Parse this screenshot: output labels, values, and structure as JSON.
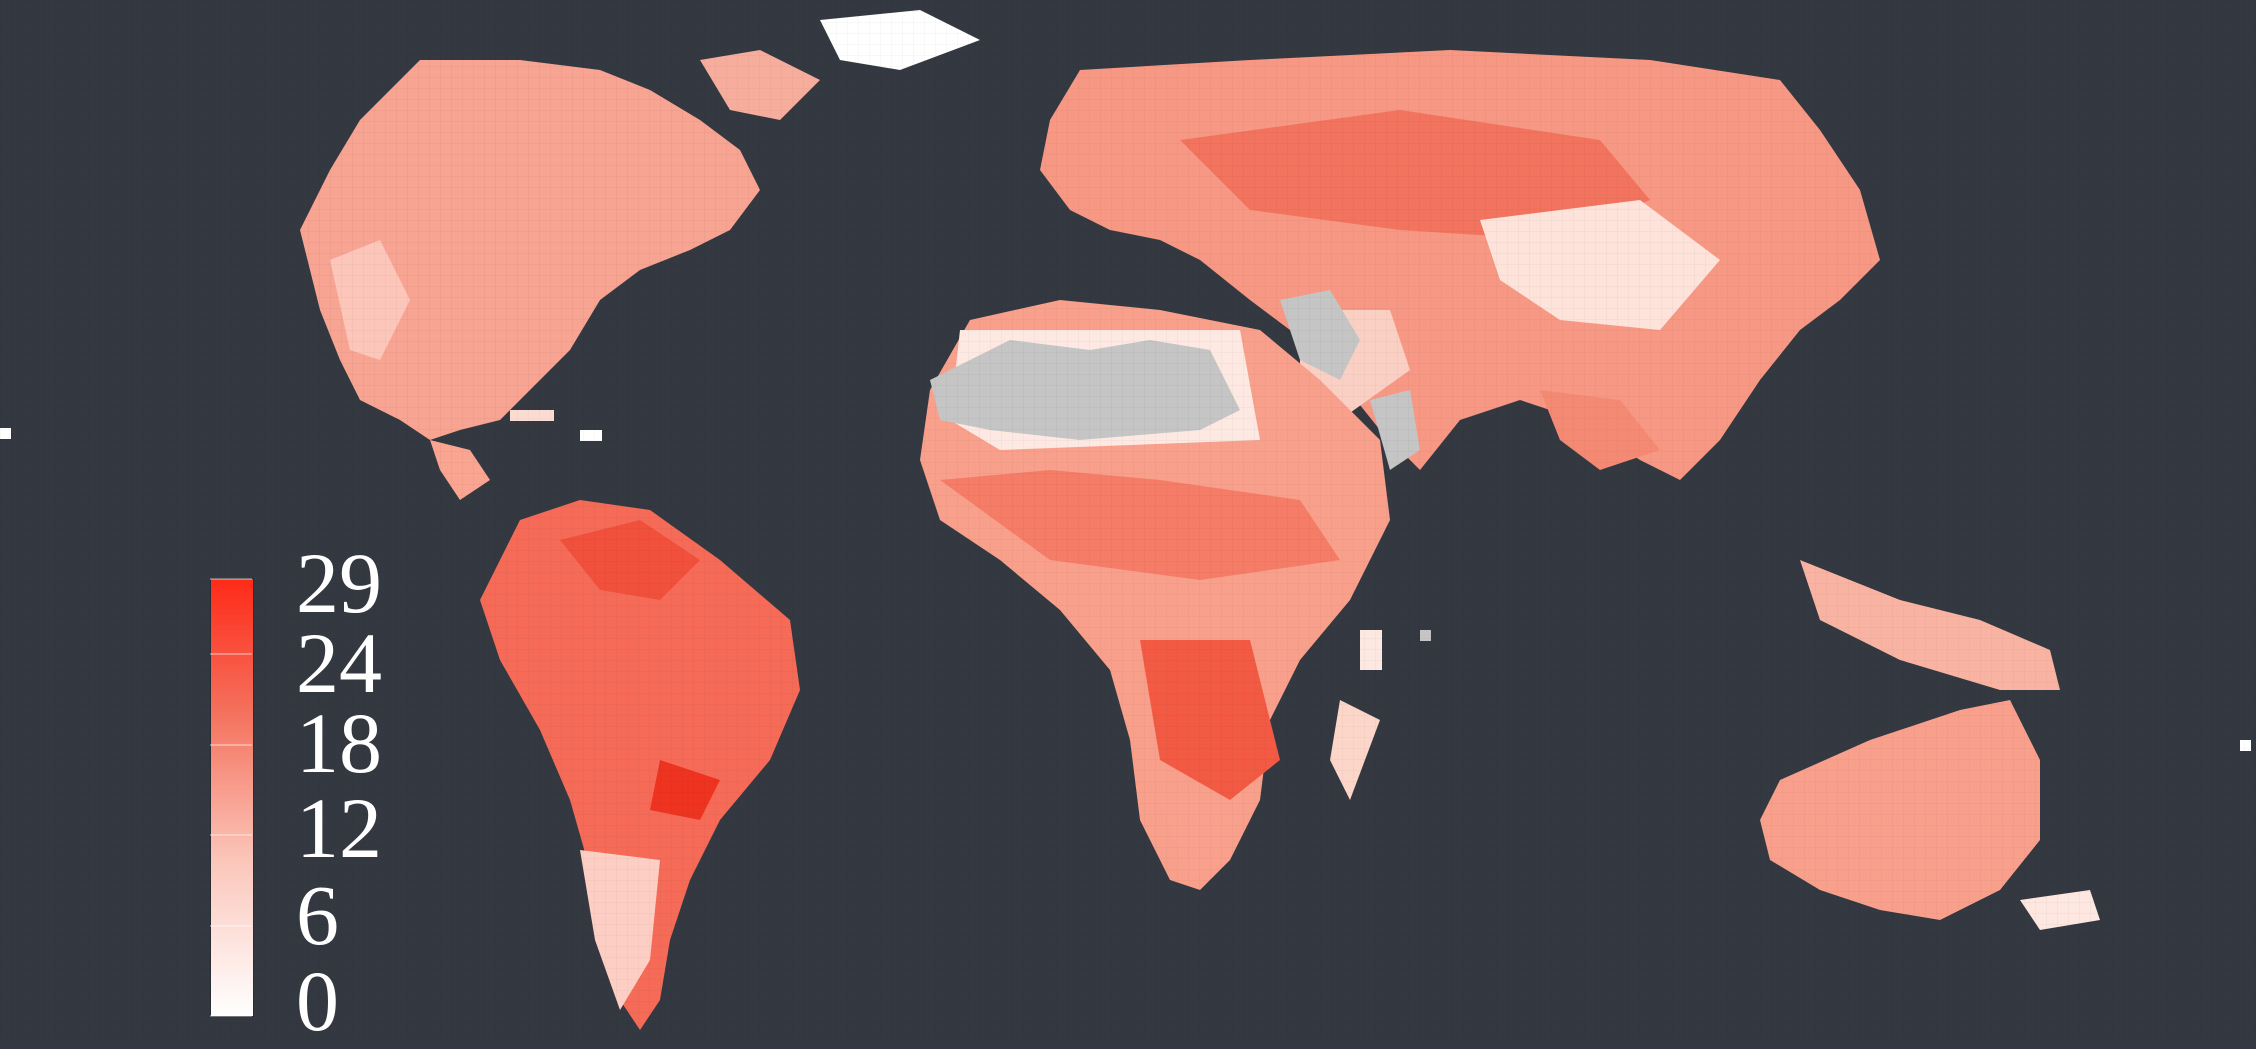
{
  "legend": {
    "ticks": [
      {
        "label": "29",
        "value": 29
      },
      {
        "label": "24",
        "value": 24
      },
      {
        "label": "18",
        "value": 18
      },
      {
        "label": "12",
        "value": 12
      },
      {
        "label": "6",
        "value": 6
      },
      {
        "label": "0",
        "value": 0
      }
    ],
    "min": 0,
    "max": 29
  },
  "colors": {
    "background": "#343840",
    "scale_low": "#ffffff",
    "scale_high": "#ff2a18",
    "no_data": "#c5c5c5"
  }
}
